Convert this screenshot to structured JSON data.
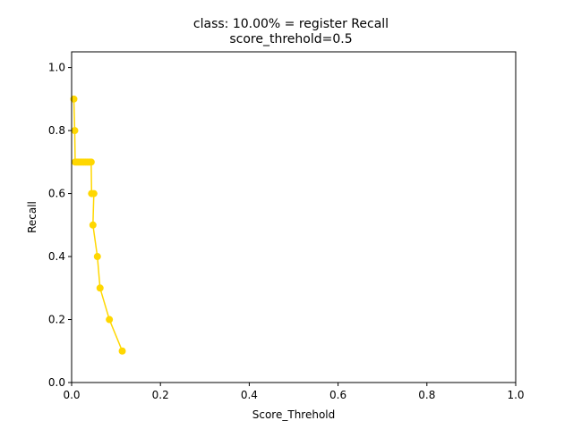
{
  "chart_data": {
    "type": "line",
    "title": "class: 10.00% = register Recall",
    "subtitle": "score_threhold=0.5",
    "xlabel": "Score_Threhold",
    "ylabel": "Recall",
    "xlim": [
      0.0,
      1.0
    ],
    "ylim": [
      0.0,
      1.05
    ],
    "xticks": [
      "0.0",
      "0.2",
      "0.4",
      "0.6",
      "0.8",
      "1.0"
    ],
    "yticks": [
      "0.0",
      "0.2",
      "0.4",
      "0.6",
      "0.8",
      "1.0"
    ],
    "grid": false,
    "line_color": "#ffd700",
    "series": [
      {
        "x": [
          0.005,
          0.007,
          0.008,
          0.012,
          0.016,
          0.02,
          0.024,
          0.028,
          0.032,
          0.036,
          0.04,
          0.044,
          0.045,
          0.05,
          0.048,
          0.058,
          0.064,
          0.085,
          0.114
        ],
        "y": [
          0.9,
          0.8,
          0.7,
          0.7,
          0.7,
          0.7,
          0.7,
          0.7,
          0.7,
          0.7,
          0.7,
          0.7,
          0.6,
          0.6,
          0.5,
          0.4,
          0.3,
          0.2,
          0.1
        ]
      }
    ]
  }
}
